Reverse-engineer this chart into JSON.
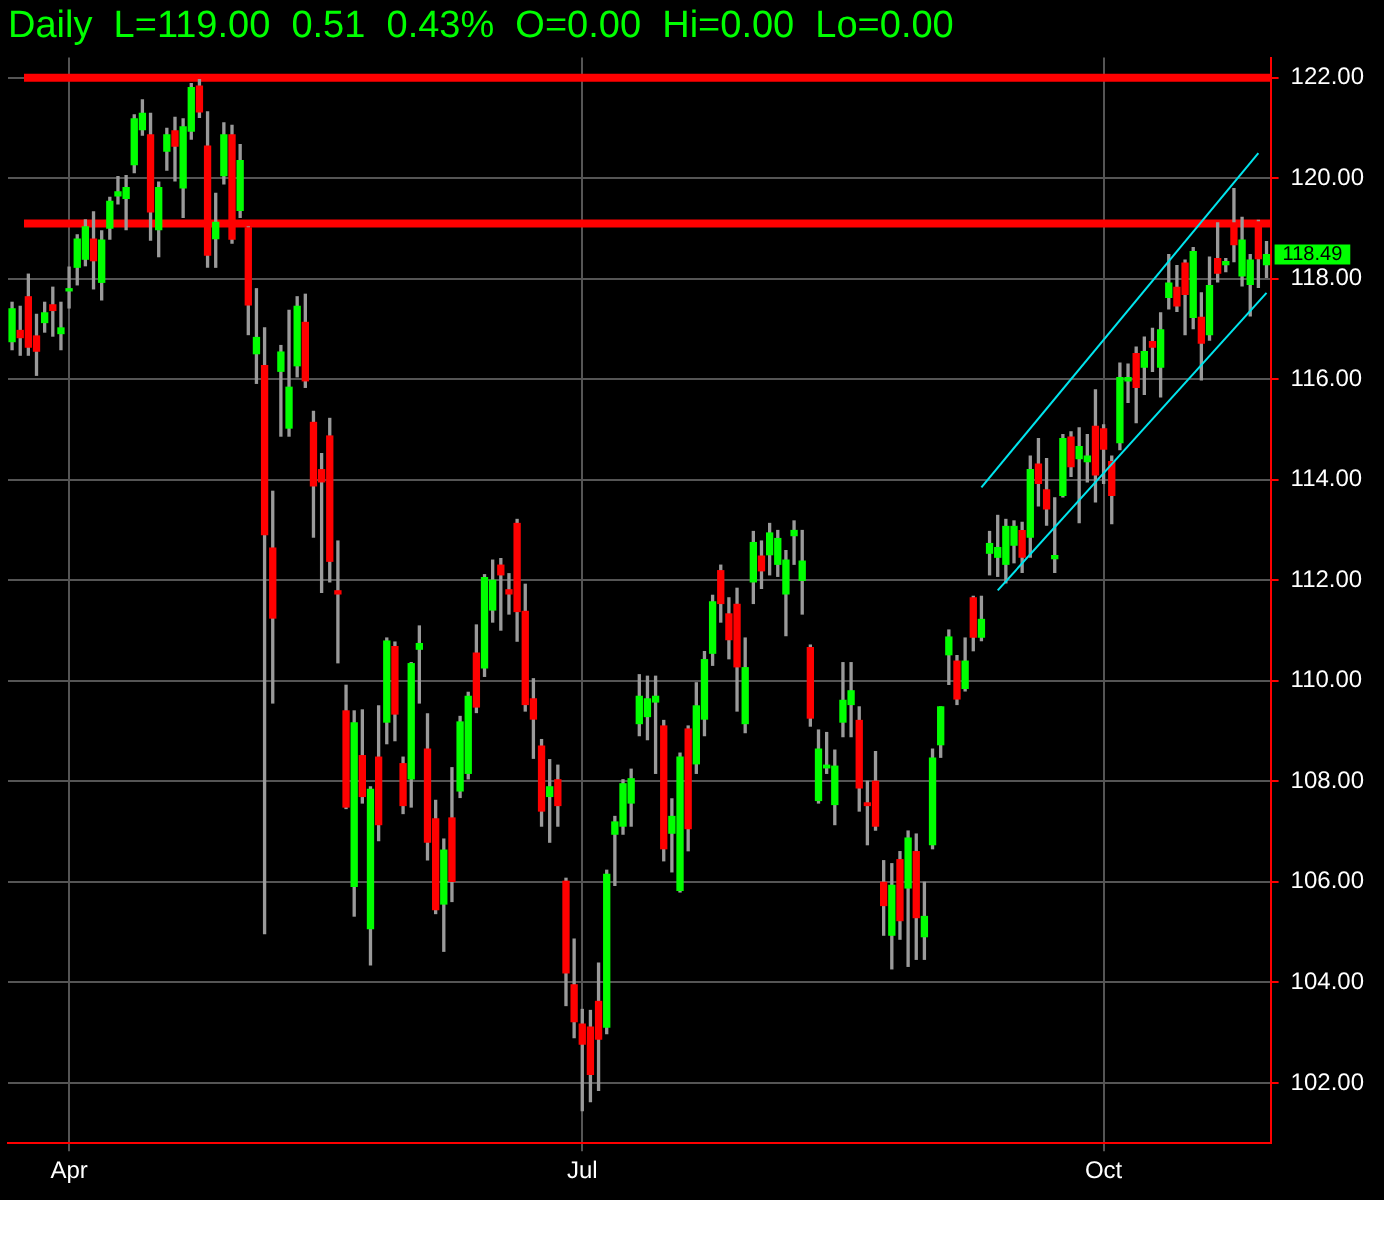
{
  "chart_data": {
    "type": "candlestick",
    "title": "Daily  L=119.00  0.51  0.43%  O=0.00  Hi=0.00  Lo=0.00",
    "categories": [
      null,
      null,
      null,
      null,
      null,
      null,
      null,
      "Apr",
      null,
      null,
      null,
      null,
      null,
      null,
      null,
      null,
      null,
      null,
      null,
      null,
      null,
      null,
      null,
      null,
      null,
      null,
      null,
      null,
      null,
      null,
      null,
      null,
      null,
      null,
      null,
      null,
      null,
      null,
      null,
      null,
      null,
      null,
      null,
      null,
      null,
      null,
      null,
      null,
      null,
      null,
      null,
      null,
      null,
      null,
      null,
      null,
      null,
      null,
      null,
      null,
      null,
      null,
      null,
      null,
      null,
      null,
      null,
      null,
      null,
      null,
      "Jul",
      null,
      null,
      null,
      null,
      null,
      null,
      null,
      null,
      null,
      null,
      null,
      null,
      null,
      null,
      null,
      null,
      null,
      null,
      null,
      null,
      null,
      null,
      null,
      null,
      null,
      null,
      null,
      null,
      null,
      null,
      null,
      null,
      null,
      null,
      null,
      null,
      null,
      null,
      null,
      null,
      null,
      null,
      null,
      null,
      null,
      null,
      null,
      null,
      null,
      null,
      null,
      null,
      null,
      null,
      null,
      null,
      null,
      null,
      null,
      null,
      null,
      null,
      null,
      "Oct",
      null,
      null,
      null,
      null,
      null,
      null,
      null,
      null,
      null,
      null,
      null,
      null,
      null,
      null,
      null,
      null,
      null,
      null,
      null,
      null
    ],
    "ohlc": [
      [
        116.75,
        117.53,
        116.59,
        117.4
      ],
      [
        116.97,
        117.45,
        116.48,
        116.83
      ],
      [
        117.64,
        118.09,
        116.48,
        116.64
      ],
      [
        116.86,
        117.29,
        116.08,
        116.56
      ],
      [
        117.13,
        117.53,
        116.94,
        117.32
      ],
      [
        117.48,
        117.83,
        116.86,
        117.37
      ],
      [
        116.91,
        117.53,
        116.59,
        117.02
      ],
      [
        117.76,
        118.23,
        117.42,
        117.8
      ],
      [
        118.23,
        118.87,
        117.88,
        118.79
      ],
      [
        118.39,
        119.17,
        118.26,
        119.03
      ],
      [
        118.79,
        119.33,
        117.8,
        118.36
      ],
      [
        117.93,
        118.95,
        117.58,
        118.77
      ],
      [
        119.01,
        119.62,
        118.79,
        119.54
      ],
      [
        119.65,
        120.03,
        119.49,
        119.73
      ],
      [
        119.6,
        120.05,
        118.98,
        119.81
      ],
      [
        120.27,
        121.26,
        120.11,
        121.18
      ],
      [
        120.97,
        121.56,
        120.86,
        121.29
      ],
      [
        120.86,
        121.29,
        118.77,
        119.33
      ],
      [
        118.98,
        119.92,
        118.44,
        119.81
      ],
      [
        120.54,
        120.99,
        120.16,
        120.86
      ],
      [
        120.94,
        121.21,
        119.95,
        120.64
      ],
      [
        119.81,
        121.18,
        119.22,
        121.02
      ],
      [
        120.94,
        121.88,
        120.78,
        121.8
      ],
      [
        121.83,
        121.96,
        121.21,
        121.32
      ],
      [
        120.64,
        121.32,
        118.23,
        118.47
      ],
      [
        118.8,
        119.7,
        118.23,
        119.12
      ],
      [
        120.05,
        121.1,
        119.89,
        120.86
      ],
      [
        120.86,
        121.05,
        118.71,
        118.79
      ],
      [
        119.36,
        120.67,
        119.22,
        120.35
      ],
      [
        119.01,
        119.03,
        116.89,
        117.48
      ],
      [
        116.51,
        117.8,
        115.92,
        116.83
      ],
      [
        116.27,
        117.02,
        104.97,
        112.91
      ],
      [
        112.64,
        113.77,
        109.56,
        111.25
      ],
      [
        116.16,
        116.67,
        114.87,
        116.54
      ],
      [
        115.03,
        117.37,
        114.87,
        115.84
      ],
      [
        116.27,
        117.64,
        116.05,
        117.45
      ],
      [
        117.13,
        117.69,
        115.84,
        115.97
      ],
      [
        115.14,
        115.36,
        112.86,
        113.88
      ],
      [
        114.2,
        114.52,
        111.76,
        113.96
      ],
      [
        114.87,
        115.22,
        111.97,
        112.38
      ],
      [
        111.79,
        112.78,
        110.36,
        111.73
      ],
      [
        109.4,
        109.91,
        107.46,
        107.49
      ],
      [
        105.91,
        109.4,
        105.32,
        109.16
      ],
      [
        108.51,
        109.42,
        107.57,
        107.7
      ],
      [
        105.07,
        107.89,
        104.35,
        107.84
      ],
      [
        108.48,
        109.5,
        106.82,
        107.14
      ],
      [
        109.18,
        110.85,
        108.75,
        110.79
      ],
      [
        110.68,
        110.77,
        108.81,
        109.34
      ],
      [
        108.35,
        108.48,
        107.36,
        107.52
      ],
      [
        108.05,
        110.36,
        107.49,
        110.34
      ],
      [
        110.63,
        111.09,
        109.56,
        110.74
      ],
      [
        108.64,
        109.34,
        106.44,
        106.79
      ],
      [
        107.25,
        107.62,
        105.37,
        105.45
      ],
      [
        105.56,
        106.85,
        104.62,
        106.63
      ],
      [
        107.27,
        108.27,
        105.61,
        106.01
      ],
      [
        107.81,
        109.29,
        107.68,
        109.18
      ],
      [
        108.16,
        109.77,
        108.05,
        109.69
      ],
      [
        110.55,
        111.11,
        109.37,
        109.48
      ],
      [
        110.26,
        112.11,
        110.09,
        112.05
      ],
      [
        111.41,
        112.4,
        111.17,
        112.0
      ],
      [
        112.3,
        112.43,
        111.01,
        112.11
      ],
      [
        111.81,
        112.13,
        111.33,
        111.73
      ],
      [
        113.13,
        113.21,
        110.79,
        111.38
      ],
      [
        111.38,
        111.92,
        109.4,
        109.53
      ],
      [
        109.64,
        110.04,
        108.46,
        109.24
      ],
      [
        108.7,
        108.83,
        107.11,
        107.41
      ],
      [
        107.7,
        108.43,
        106.79,
        107.89
      ],
      [
        108.03,
        108.32,
        107.11,
        107.52
      ],
      [
        106.01,
        106.07,
        103.54,
        104.19
      ],
      [
        103.95,
        104.86,
        102.9,
        103.22
      ],
      [
        103.17,
        103.46,
        101.45,
        102.77
      ],
      [
        103.11,
        103.44,
        101.63,
        102.17
      ],
      [
        103.62,
        104.38,
        101.85,
        102.87
      ],
      [
        103.11,
        106.23,
        102.98,
        106.15
      ],
      [
        106.95,
        107.3,
        105.93,
        107.19
      ],
      [
        107.11,
        108.03,
        106.95,
        107.95
      ],
      [
        107.57,
        108.24,
        107.11,
        108.05
      ],
      [
        109.15,
        110.12,
        108.91,
        109.69
      ],
      [
        109.29,
        110.09,
        108.83,
        109.64
      ],
      [
        109.58,
        110.09,
        108.16,
        109.69
      ],
      [
        109.1,
        109.21,
        106.42,
        106.66
      ],
      [
        106.97,
        107.65,
        106.2,
        107.3
      ],
      [
        105.83,
        108.56,
        105.8,
        108.48
      ],
      [
        109.04,
        109.1,
        106.62,
        107.06
      ],
      [
        108.35,
        109.96,
        108.16,
        109.5
      ],
      [
        109.24,
        110.58,
        108.91,
        110.42
      ],
      [
        110.55,
        111.7,
        110.31,
        111.57
      ],
      [
        112.19,
        112.3,
        111.17,
        111.54
      ],
      [
        111.33,
        111.65,
        110.44,
        110.82
      ],
      [
        111.52,
        111.84,
        109.4,
        110.28
      ],
      [
        109.15,
        110.85,
        108.97,
        110.26
      ],
      [
        111.97,
        112.97,
        111.54,
        112.75
      ],
      [
        112.48,
        112.78,
        111.84,
        112.19
      ],
      [
        112.51,
        113.13,
        112.11,
        112.94
      ],
      [
        112.32,
        112.99,
        112.08,
        112.83
      ],
      [
        111.73,
        112.59,
        110.9,
        112.4
      ],
      [
        112.89,
        113.18,
        112.32,
        112.99
      ],
      [
        112.0,
        112.99,
        111.33,
        112.38
      ],
      [
        110.66,
        110.71,
        109.1,
        109.26
      ],
      [
        107.62,
        109.02,
        107.57,
        108.64
      ],
      [
        108.27,
        108.97,
        108.16,
        108.32
      ],
      [
        107.54,
        108.62,
        107.14,
        108.3
      ],
      [
        109.18,
        110.36,
        108.89,
        109.61
      ],
      [
        109.53,
        110.36,
        108.89,
        109.8
      ],
      [
        109.21,
        109.48,
        107.41,
        107.87
      ],
      [
        107.57,
        108.0,
        106.74,
        107.52
      ],
      [
        108.0,
        108.59,
        107.03,
        107.11
      ],
      [
        105.99,
        106.42,
        104.94,
        105.53
      ],
      [
        104.94,
        106.36,
        104.27,
        105.93
      ],
      [
        106.44,
        106.6,
        104.86,
        105.23
      ],
      [
        105.88,
        107.01,
        104.32,
        106.87
      ],
      [
        106.6,
        106.95,
        104.46,
        105.29
      ],
      [
        104.91,
        105.99,
        104.46,
        105.31
      ],
      [
        106.74,
        108.64,
        106.66,
        108.46
      ],
      [
        108.73,
        109.48,
        108.48,
        109.48
      ],
      [
        110.52,
        111.01,
        109.93,
        110.87
      ],
      [
        110.39,
        110.5,
        109.53,
        109.64
      ],
      [
        109.85,
        110.85,
        109.8,
        110.39
      ],
      [
        111.65,
        111.68,
        110.6,
        110.87
      ],
      [
        110.87,
        111.68,
        110.8,
        111.22
      ],
      [
        112.54,
        112.97,
        112.11,
        112.73
      ],
      [
        112.46,
        113.29,
        112.08,
        112.65
      ],
      [
        112.32,
        113.21,
        111.95,
        113.07
      ],
      [
        112.7,
        113.18,
        112.35,
        113.07
      ],
      [
        112.99,
        113.15,
        112.16,
        112.46
      ],
      [
        112.86,
        114.47,
        112.46,
        114.2
      ],
      [
        114.31,
        114.82,
        113.48,
        113.93
      ],
      [
        113.8,
        114.42,
        113.1,
        113.42
      ],
      [
        112.43,
        113.64,
        112.16,
        112.49
      ],
      [
        113.69,
        114.9,
        113.66,
        114.82
      ],
      [
        114.85,
        114.95,
        114.07,
        114.26
      ],
      [
        114.42,
        115.03,
        113.15,
        114.66
      ],
      [
        114.36,
        114.9,
        113.96,
        114.47
      ],
      [
        115.06,
        115.79,
        113.56,
        114.1
      ],
      [
        115.01,
        115.09,
        113.93,
        114.61
      ],
      [
        114.36,
        114.47,
        113.13,
        113.69
      ],
      [
        114.74,
        116.32,
        114.6,
        116.03
      ],
      [
        115.97,
        116.3,
        115.54,
        116.03
      ],
      [
        116.51,
        116.64,
        115.14,
        115.84
      ],
      [
        116.24,
        116.84,
        115.7,
        116.55
      ],
      [
        116.75,
        117.01,
        116.16,
        116.64
      ],
      [
        116.24,
        117.32,
        115.65,
        116.98
      ],
      [
        117.63,
        118.48,
        117.4,
        117.91
      ],
      [
        117.83,
        118.26,
        117.35,
        117.46
      ],
      [
        118.31,
        118.37,
        116.89,
        117.69
      ],
      [
        117.23,
        118.62,
        117.01,
        118.54
      ],
      [
        117.23,
        117.72,
        115.99,
        116.72
      ],
      [
        116.89,
        118.43,
        116.78,
        117.86
      ],
      [
        118.4,
        119.11,
        117.94,
        118.11
      ],
      [
        118.28,
        118.4,
        118.14,
        118.34
      ],
      [
        119.11,
        119.79,
        118.34,
        118.68
      ],
      [
        118.06,
        119.22,
        117.86,
        118.77
      ],
      [
        117.89,
        118.48,
        117.26,
        118.37
      ],
      [
        119.13,
        119.16,
        117.83,
        118.4
      ],
      [
        118.28,
        118.74,
        118.03,
        118.48
      ]
    ],
    "colors": [
      "#00ff00",
      "#ff0000",
      "#ff0000",
      "#ff0000",
      "#00ff00",
      "#ff0000",
      "#00ff00",
      "#00ff00",
      "#00ff00",
      "#00ff00",
      "#ff0000",
      "#00ff00",
      "#00ff00",
      "#00ff00",
      "#00ff00",
      "#00ff00",
      "#00ff00",
      "#ff0000",
      "#00ff00",
      "#00ff00",
      "#ff0000",
      "#00ff00",
      "#00ff00",
      "#ff0000",
      "#ff0000",
      "#00ff00",
      "#00ff00",
      "#ff0000",
      "#00ff00",
      "#ff0000",
      "#00ff00",
      "#ff0000",
      "#ff0000",
      "#00ff00",
      "#00ff00",
      "#00ff00",
      "#ff0000",
      "#ff0000",
      "#ff0000",
      "#ff0000",
      "#ff0000",
      "#ff0000",
      "#00ff00",
      "#ff0000",
      "#00ff00",
      "#ff0000",
      "#00ff00",
      "#ff0000",
      "#ff0000",
      "#00ff00",
      "#00ff00",
      "#ff0000",
      "#ff0000",
      "#00ff00",
      "#ff0000",
      "#00ff00",
      "#00ff00",
      "#ff0000",
      "#00ff00",
      "#00ff00",
      "#ff0000",
      "#ff0000",
      "#ff0000",
      "#ff0000",
      "#ff0000",
      "#ff0000",
      "#00ff00",
      "#ff0000",
      "#ff0000",
      "#ff0000",
      "#ff0000",
      "#ff0000",
      "#ff0000",
      "#00ff00",
      "#00ff00",
      "#00ff00",
      "#00ff00",
      "#00ff00",
      "#00ff00",
      "#00ff00",
      "#ff0000",
      "#00ff00",
      "#00ff00",
      "#ff0000",
      "#00ff00",
      "#00ff00",
      "#00ff00",
      "#ff0000",
      "#ff0000",
      "#ff0000",
      "#00ff00",
      "#00ff00",
      "#ff0000",
      "#00ff00",
      "#00ff00",
      "#00ff00",
      "#00ff00",
      "#00ff00",
      "#ff0000",
      "#00ff00",
      "#00ff00",
      "#00ff00",
      "#00ff00",
      "#00ff00",
      "#ff0000",
      "#ff0000",
      "#ff0000",
      "#ff0000",
      "#00ff00",
      "#ff0000",
      "#00ff00",
      "#ff0000",
      "#00ff00",
      "#00ff00",
      "#00ff00",
      "#00ff00",
      "#ff0000",
      "#00ff00",
      "#ff0000",
      "#00ff00",
      "#00ff00",
      "#00ff00",
      "#00ff00",
      "#00ff00",
      "#ff0000",
      "#00ff00",
      "#ff0000",
      "#ff0000",
      "#00ff00",
      "#00ff00",
      "#ff0000",
      "#00ff00",
      "#00ff00",
      "#ff0000",
      "#ff0000",
      "#ff0000",
      "#00ff00",
      "#00ff00",
      "#ff0000",
      "#00ff00",
      "#ff0000",
      "#00ff00",
      "#00ff00",
      "#ff0000",
      "#ff0000",
      "#00ff00",
      "#ff0000",
      "#00ff00",
      "#ff0000",
      "#00ff00",
      "#ff0000",
      "#00ff00",
      "#00ff00",
      "#ff0000",
      "#00ff00"
    ],
    "series": [
      {
        "type": "line",
        "color": "#00e5ee",
        "values": [
          null,
          null,
          null,
          null,
          null,
          null,
          null,
          null,
          null,
          null,
          null,
          null,
          null,
          null,
          null,
          null,
          null,
          null,
          null,
          null,
          null,
          null,
          null,
          null,
          null,
          null,
          null,
          null,
          null,
          null,
          null,
          null,
          null,
          null,
          null,
          null,
          null,
          null,
          null,
          null,
          null,
          null,
          null,
          null,
          null,
          null,
          null,
          null,
          null,
          null,
          null,
          null,
          null,
          null,
          null,
          null,
          null,
          null,
          null,
          null,
          null,
          null,
          null,
          null,
          null,
          null,
          null,
          null,
          null,
          null,
          null,
          null,
          null,
          null,
          null,
          null,
          null,
          null,
          null,
          null,
          null,
          null,
          null,
          null,
          null,
          null,
          null,
          null,
          null,
          null,
          null,
          null,
          null,
          null,
          null,
          null,
          null,
          null,
          null,
          null,
          null,
          null,
          null,
          null,
          null,
          null,
          null,
          null,
          null,
          null,
          null,
          null,
          null,
          null,
          null,
          null,
          null,
          null,
          null,
          113.85,
          null,
          null,
          null,
          null,
          null,
          null,
          null,
          null,
          null,
          null,
          null,
          null,
          null,
          null,
          null,
          null,
          null,
          null,
          null,
          null,
          null,
          null,
          null,
          null,
          null,
          null,
          null,
          null,
          null,
          null,
          null,
          null,
          null,
          120.5,
          null
        ]
      },
      {
        "type": "line",
        "color": "#00e5ee",
        "values": [
          null,
          null,
          null,
          null,
          null,
          null,
          null,
          null,
          null,
          null,
          null,
          null,
          null,
          null,
          null,
          null,
          null,
          null,
          null,
          null,
          null,
          null,
          null,
          null,
          null,
          null,
          null,
          null,
          null,
          null,
          null,
          null,
          null,
          null,
          null,
          null,
          null,
          null,
          null,
          null,
          null,
          null,
          null,
          null,
          null,
          null,
          null,
          null,
          null,
          null,
          null,
          null,
          null,
          null,
          null,
          null,
          null,
          null,
          null,
          null,
          null,
          null,
          null,
          null,
          null,
          null,
          null,
          null,
          null,
          null,
          null,
          null,
          null,
          null,
          null,
          null,
          null,
          null,
          null,
          null,
          null,
          null,
          null,
          null,
          null,
          null,
          null,
          null,
          null,
          null,
          null,
          null,
          null,
          null,
          null,
          null,
          null,
          null,
          null,
          null,
          null,
          null,
          null,
          null,
          null,
          null,
          null,
          null,
          null,
          null,
          null,
          null,
          null,
          null,
          null,
          null,
          null,
          null,
          null,
          null,
          null,
          111.8,
          null,
          null,
          null,
          null,
          null,
          null,
          null,
          null,
          null,
          null,
          null,
          null,
          null,
          null,
          null,
          null,
          null,
          null,
          null,
          null,
          null,
          null,
          null,
          null,
          null,
          null,
          null,
          null,
          null,
          null,
          null,
          null,
          117.72
        ]
      }
    ],
    "ylim": [
      100.8,
      122.4
    ],
    "yticks": [
      {
        "value": 102,
        "label": "102.00"
      },
      {
        "value": 104,
        "label": "104.00"
      },
      {
        "value": 106,
        "label": "106.00"
      },
      {
        "value": 108,
        "label": "108.00"
      },
      {
        "value": 110,
        "label": "110.00"
      },
      {
        "value": 112,
        "label": "112.00"
      },
      {
        "value": 114,
        "label": "114.00"
      },
      {
        "value": 116,
        "label": "116.00"
      },
      {
        "value": 118,
        "label": "118.00"
      },
      {
        "value": 120,
        "label": "120.00"
      },
      {
        "value": 122,
        "label": "122.00"
      }
    ],
    "ref_lines": [
      {
        "axis": "y",
        "value": 122,
        "color": "#ff0000"
      },
      {
        "axis": "y",
        "value": 119.1,
        "color": "#ff0000"
      }
    ],
    "annotations": [
      "118.49"
    ],
    "grid": true
  }
}
